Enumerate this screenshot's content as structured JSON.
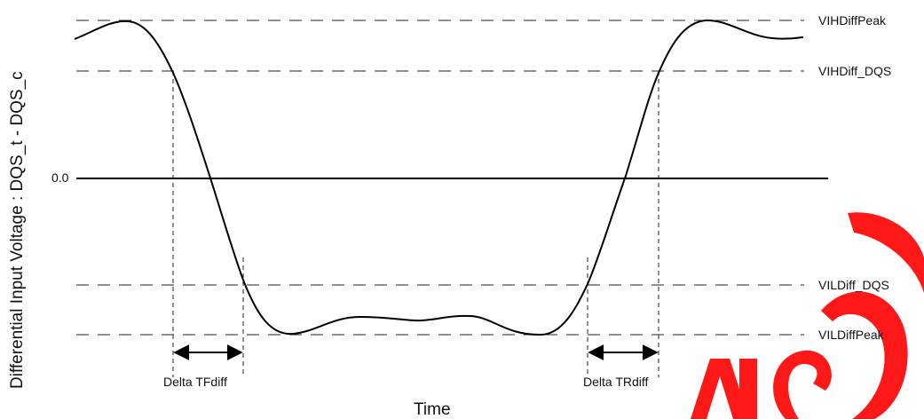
{
  "y_axis_label": "Differential Input Voltage : DQS_t - DQS_c",
  "x_axis_label": "Time",
  "zero_label": "0.0",
  "levels": {
    "vih_peak": "VIHDiffPeak",
    "vih_dqs": "VIHDiff_DQS",
    "vil_dqs": "VILDiff_DQS",
    "vil_peak": "VILDiffPeak"
  },
  "deltas": {
    "fall": "Delta TFdiff",
    "rise": "Delta TRdiff"
  },
  "colors": {
    "line": "#000000",
    "watermark": "#ff0000"
  }
}
